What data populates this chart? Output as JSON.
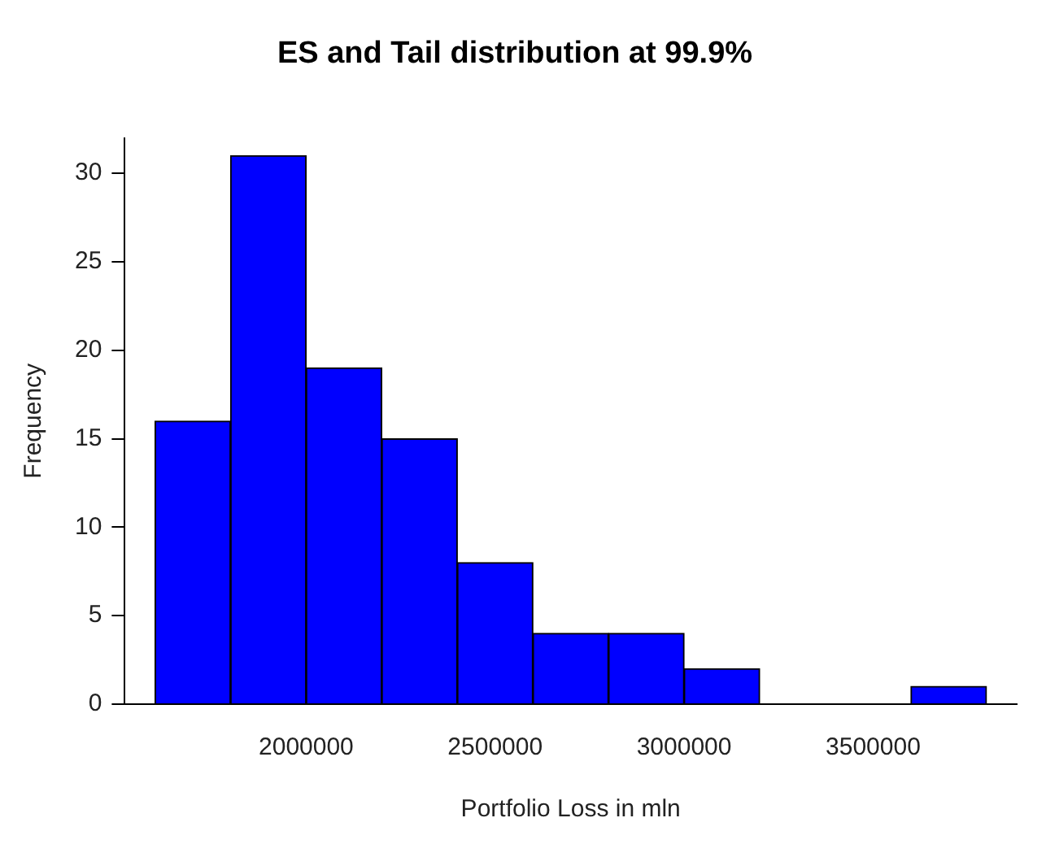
{
  "chart_data": {
    "type": "histogram",
    "title": "ES and Tail distribution at 99.9%",
    "xlabel": "Portfolio Loss in mln",
    "ylabel": "Frequency",
    "bins": [
      1600000,
      1800000,
      2000000,
      2200000,
      2400000,
      2600000,
      2800000,
      3000000,
      3200000,
      3400000,
      3600000,
      3800000
    ],
    "values": [
      16,
      31,
      19,
      15,
      8,
      4,
      4,
      2,
      0,
      0,
      1
    ],
    "color": "#0000ff",
    "xlim": [
      1520000,
      3880000
    ],
    "xticks": [
      2000000,
      2500000,
      3000000,
      3500000
    ],
    "ylim": [
      0,
      32
    ],
    "yticks": [
      0,
      5,
      10,
      15,
      20,
      25,
      30
    ],
    "grid": false,
    "legend": false
  }
}
